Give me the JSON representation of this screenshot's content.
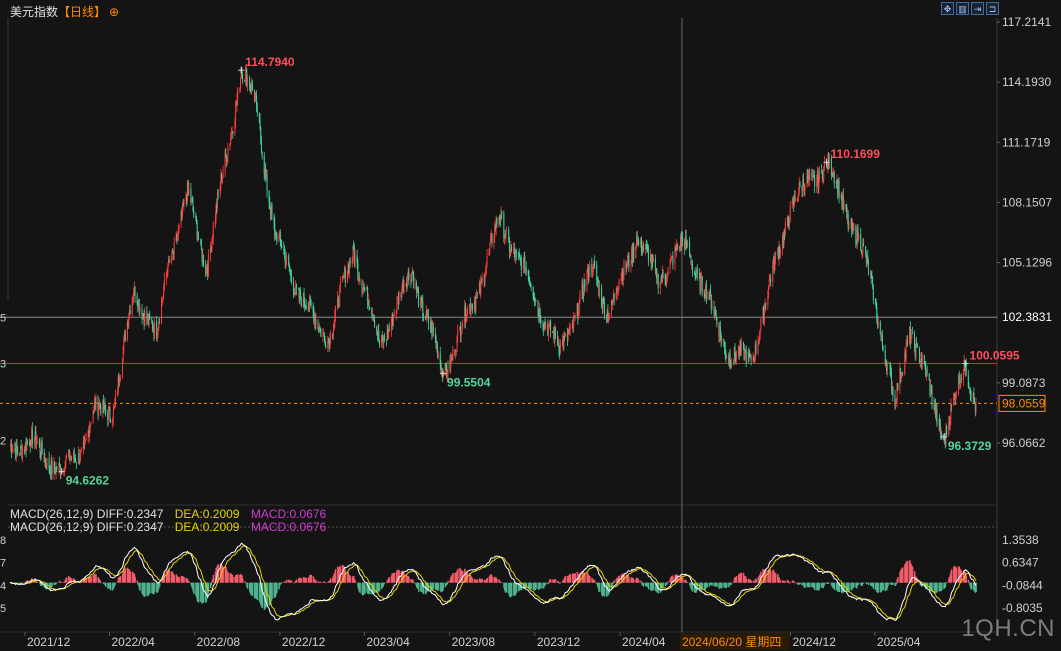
{
  "header": {
    "name": "美元指数",
    "period": "【日线】",
    "plus_icon": "⊕"
  },
  "toolbar": {
    "icons": [
      "move-icon",
      "two-panel-icon",
      "split-icon",
      "exit-icon"
    ]
  },
  "macd": {
    "label": "MACD(26,12,9)",
    "diff": "DIFF:0.2347",
    "dea": "DEA:0.2009",
    "macd": "MACD:0.0676"
  },
  "watermark": "1QH.CN",
  "colors": {
    "up": "#ff3b3b",
    "down": "#3fd3a0",
    "bar_up": "#f25c6a",
    "bar_down": "#4fb38c",
    "label_high": "#ff4d5a",
    "label_low": "#56d39a",
    "current": "#ff8a00",
    "dea_line": "#e6d200",
    "diff_line": "#ffffff",
    "hline_red": "#e3262b",
    "hline_gray": "#8a8a8a"
  },
  "chart_data": {
    "type": "candlestick",
    "y_axis_labels": [
      "117.2141",
      "114.1930",
      "111.1719",
      "108.1507",
      "105.1296",
      "102.3831",
      "99.0873",
      "98.0559",
      "96.0662"
    ],
    "y_range": [
      94.0,
      117.5
    ],
    "x_axis_labels": [
      "2021/12",
      "2022/04",
      "2022/08",
      "2022/12",
      "2023/04",
      "2023/08",
      "2023/12",
      "2024/04",
      "2024/06/20 星期四",
      "2024/12",
      "2025/04"
    ],
    "annotations": [
      {
        "label": "114.7940",
        "kind": "high"
      },
      {
        "label": "110.1699",
        "kind": "high"
      },
      {
        "label": "100.0595",
        "kind": "high"
      },
      {
        "label": "99.5504",
        "kind": "low"
      },
      {
        "label": "94.6262",
        "kind": "low"
      },
      {
        "label": "96.3729",
        "kind": "low"
      }
    ],
    "horizontal_lines": [
      {
        "value": 102.3831,
        "label": "102.3831",
        "style": "gray"
      },
      {
        "value": 100.0595,
        "style": "red"
      },
      {
        "value": 98.0559,
        "label": "98.0559",
        "style": "current"
      }
    ],
    "left_edge_labels": [
      "5",
      "3",
      "2"
    ],
    "anchors": [
      {
        "date": "2021/11/01",
        "close": 95.9
      },
      {
        "date": "2021/12/01",
        "close": 96.1
      },
      {
        "date": "2022/01/14",
        "close": 94.6262
      },
      {
        "date": "2022/02/15",
        "close": 96.0
      },
      {
        "date": "2022/03/01",
        "close": 97.6
      },
      {
        "date": "2022/03/30",
        "close": 97.9
      },
      {
        "date": "2022/04/28",
        "close": 103.9
      },
      {
        "date": "2022/05/30",
        "close": 101.3
      },
      {
        "date": "2022/06/15",
        "close": 105.0
      },
      {
        "date": "2022/07/14",
        "close": 108.5
      },
      {
        "date": "2022/08/10",
        "close": 104.9
      },
      {
        "date": "2022/09/28",
        "close": 114.794
      },
      {
        "date": "2022/10/20",
        "close": 113.0
      },
      {
        "date": "2022/11/15",
        "close": 106.5
      },
      {
        "date": "2022/12/15",
        "close": 104.0
      },
      {
        "date": "2023/01/15",
        "close": 101.9
      },
      {
        "date": "2023/02/03",
        "close": 101.5
      },
      {
        "date": "2023/03/08",
        "close": 105.9
      },
      {
        "date": "2023/04/14",
        "close": 101.0
      },
      {
        "date": "2023/05/31",
        "close": 104.7
      },
      {
        "date": "2023/07/14",
        "close": 99.5504
      },
      {
        "date": "2023/08/31",
        "close": 103.6
      },
      {
        "date": "2023/10/03",
        "close": 107.3
      },
      {
        "date": "2023/11/15",
        "close": 104.1
      },
      {
        "date": "2023/12/28",
        "close": 100.6
      },
      {
        "date": "2024/02/14",
        "close": 104.9
      },
      {
        "date": "2024/03/08",
        "close": 102.5
      },
      {
        "date": "2024/04/16",
        "close": 106.5
      },
      {
        "date": "2024/05/15",
        "close": 104.3
      },
      {
        "date": "2024/06/26",
        "close": 106.1
      },
      {
        "date": "2024/08/27",
        "close": 100.5
      },
      {
        "date": "2024/09/27",
        "close": 100.2
      },
      {
        "date": "2024/11/22",
        "close": 108.0
      },
      {
        "date": "2025/01/13",
        "close": 110.1699
      },
      {
        "date": "2025/02/27",
        "close": 106.3
      },
      {
        "date": "2025/03/20",
        "close": 103.9
      },
      {
        "date": "2025/04/21",
        "close": 97.9
      },
      {
        "date": "2025/05/12",
        "close": 101.9
      },
      {
        "date": "2025/06/30",
        "close": 96.3729
      },
      {
        "date": "2025/07/31",
        "close": 100.0595
      },
      {
        "date": "2025/08/15",
        "close": 98.0559
      }
    ],
    "macd_y_axis_labels": [
      "1.3538",
      "0.6347",
      "-0.0844",
      "-0.8035"
    ],
    "macd_range": [
      -1.35,
      1.55
    ],
    "macd_left_edge_labels": [
      "8",
      "7",
      "4",
      "5"
    ]
  }
}
